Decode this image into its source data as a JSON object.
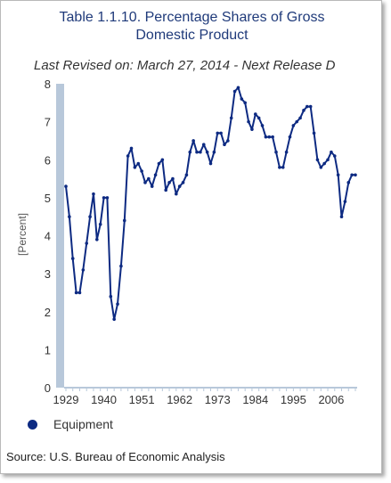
{
  "chart_data": {
    "type": "line",
    "title_line1": "Table 1.1.10. Percentage Shares of Gross",
    "title_line2": "Domestic Product",
    "subtitle": "Last Revised on: March 27, 2014 - Next Release D",
    "ylabel": "[Percent]",
    "ylim": [
      0,
      8
    ],
    "yticks": [
      "0",
      "1",
      "2",
      "3",
      "4",
      "5",
      "6",
      "7",
      "8"
    ],
    "xlim": [
      1929,
      2013
    ],
    "xtick_labels": [
      "1929",
      "1940",
      "1951",
      "1962",
      "1973",
      "1984",
      "1995",
      "2006"
    ],
    "grid": false,
    "legend_position": "bottom-left",
    "series": [
      {
        "name": "Equipment",
        "color": "#0d2a82",
        "x": [
          1929,
          1930,
          1931,
          1932,
          1933,
          1934,
          1935,
          1936,
          1937,
          1938,
          1939,
          1940,
          1941,
          1942,
          1943,
          1944,
          1945,
          1946,
          1947,
          1948,
          1949,
          1950,
          1951,
          1952,
          1953,
          1954,
          1955,
          1956,
          1957,
          1958,
          1959,
          1960,
          1961,
          1962,
          1963,
          1964,
          1965,
          1966,
          1967,
          1968,
          1969,
          1970,
          1971,
          1972,
          1973,
          1974,
          1975,
          1976,
          1977,
          1978,
          1979,
          1980,
          1981,
          1982,
          1983,
          1984,
          1985,
          1986,
          1987,
          1988,
          1989,
          1990,
          1991,
          1992,
          1993,
          1994,
          1995,
          1996,
          1997,
          1998,
          1999,
          2000,
          2001,
          2002,
          2003,
          2004,
          2005,
          2006,
          2007,
          2008,
          2009,
          2010,
          2011,
          2012,
          2013
        ],
        "values": [
          5.3,
          4.5,
          3.4,
          2.5,
          2.5,
          3.1,
          3.8,
          4.5,
          5.1,
          3.9,
          4.3,
          5.0,
          5.0,
          2.4,
          1.8,
          2.2,
          3.2,
          4.4,
          6.1,
          6.3,
          5.8,
          5.9,
          5.7,
          5.4,
          5.5,
          5.3,
          5.6,
          5.9,
          6.0,
          5.2,
          5.4,
          5.5,
          5.1,
          5.3,
          5.4,
          5.6,
          6.2,
          6.5,
          6.2,
          6.2,
          6.4,
          6.2,
          5.9,
          6.2,
          6.7,
          6.7,
          6.4,
          6.5,
          7.1,
          7.8,
          7.9,
          7.6,
          7.5,
          7.0,
          6.8,
          7.2,
          7.1,
          6.9,
          6.6,
          6.6,
          6.6,
          6.2,
          5.8,
          5.8,
          6.2,
          6.6,
          6.9,
          7.0,
          7.1,
          7.3,
          7.4,
          7.4,
          6.7,
          6.0,
          5.8,
          5.9,
          6.0,
          6.2,
          6.1,
          5.6,
          4.5,
          4.9,
          5.4,
          5.6,
          5.6
        ]
      }
    ]
  },
  "source": "Source: U.S. Bureau of Economic Analysis"
}
